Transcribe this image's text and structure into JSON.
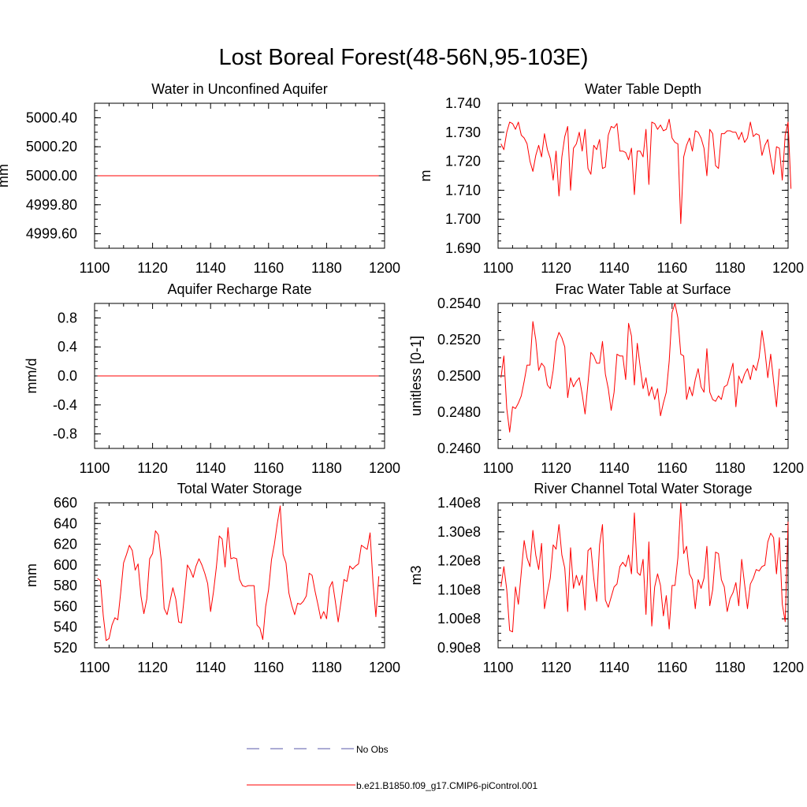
{
  "figure": {
    "title": "Lost Boreal Forest(48-56N,95-103E)"
  },
  "legend": {
    "items": [
      {
        "label": "No Obs",
        "color": "#5a5aa8",
        "style": "dashed"
      },
      {
        "label": "b.e21.B1850.f09_g17.CMIP6-piControl.001",
        "color": "#ff0000",
        "style": "solid"
      }
    ]
  },
  "chart_data": [
    {
      "type": "line",
      "title": "Water in Unconfined Aquifer",
      "xlabel": "",
      "ylabel": "mm",
      "xlim": [
        1100,
        1200
      ],
      "ylim": [
        4999.5,
        5000.5
      ],
      "xticks": [
        1100,
        1120,
        1140,
        1160,
        1180,
        1200
      ],
      "yticks": [
        4999.6,
        4999.8,
        5000.0,
        5000.2,
        5000.4
      ],
      "ytick_labels": [
        "4999.60",
        "4999.80",
        "5000.00",
        "5000.20",
        "5000.40"
      ],
      "x_start": 1101,
      "x_step": 1,
      "series": [
        {
          "name": "b.e21.B1850.f09_g17.CMIP6-piControl.001",
          "color": "#ff0000",
          "values": [
            5000,
            5000,
            5000,
            5000,
            5000,
            5000,
            5000,
            5000,
            5000,
            5000,
            5000,
            5000,
            5000,
            5000,
            5000,
            5000,
            5000,
            5000,
            5000,
            5000,
            5000,
            5000,
            5000,
            5000,
            5000,
            5000,
            5000,
            5000,
            5000,
            5000,
            5000,
            5000,
            5000,
            5000,
            5000,
            5000,
            5000,
            5000,
            5000,
            5000,
            5000,
            5000,
            5000,
            5000,
            5000,
            5000,
            5000,
            5000,
            5000,
            5000,
            5000,
            5000,
            5000,
            5000,
            5000,
            5000,
            5000,
            5000,
            5000,
            5000,
            5000,
            5000,
            5000,
            5000,
            5000,
            5000,
            5000,
            5000,
            5000,
            5000,
            5000,
            5000,
            5000,
            5000,
            5000,
            5000,
            5000,
            5000,
            5000,
            5000,
            5000,
            5000,
            5000,
            5000,
            5000,
            5000,
            5000,
            5000,
            5000,
            5000,
            5000,
            5000,
            5000,
            5000,
            5000,
            5000,
            5000,
            5000
          ]
        }
      ]
    },
    {
      "type": "line",
      "title": "Water Table Depth",
      "xlabel": "",
      "ylabel": "m",
      "xlim": [
        1100,
        1200
      ],
      "ylim": [
        1.69,
        1.74
      ],
      "xticks": [
        1100,
        1120,
        1140,
        1160,
        1180,
        1200
      ],
      "yticks": [
        1.69,
        1.7,
        1.71,
        1.72,
        1.73,
        1.74
      ],
      "ytick_labels": [
        "1.690",
        "1.700",
        "1.710",
        "1.720",
        "1.730",
        "1.740"
      ],
      "x_start": 1101,
      "x_step": 1,
      "series": [
        {
          "name": "b.e21.B1850.f09_g17.CMIP6-piControl.001",
          "color": "#ff0000",
          "values": [
            1.726,
            1.724,
            1.73,
            1.7335,
            1.733,
            1.731,
            1.7335,
            1.729,
            1.728,
            1.726,
            1.72,
            1.7165,
            1.722,
            1.7255,
            1.7215,
            1.7295,
            1.724,
            1.721,
            1.7135,
            1.7235,
            1.708,
            1.7215,
            1.7285,
            1.732,
            1.71,
            1.7245,
            1.726,
            1.73,
            1.7235,
            1.731,
            1.7175,
            1.7155,
            1.7255,
            1.724,
            1.7275,
            1.7175,
            1.718,
            1.729,
            1.732,
            1.7315,
            1.733,
            1.7235,
            1.7235,
            1.723,
            1.7205,
            1.7245,
            1.7085,
            1.7235,
            1.7235,
            1.7215,
            1.731,
            1.712,
            1.7335,
            1.733,
            1.731,
            1.7325,
            1.7305,
            1.731,
            1.7345,
            1.728,
            1.7265,
            1.726,
            1.6985,
            1.7215,
            1.7255,
            1.728,
            1.7235,
            1.7305,
            1.73,
            1.728,
            1.7245,
            1.715,
            1.731,
            1.7295,
            1.7185,
            1.7175,
            1.7295,
            1.7295,
            1.7305,
            1.7305,
            1.73,
            1.73,
            1.7275,
            1.73,
            1.7265,
            1.728,
            1.7335,
            1.7285,
            1.7295,
            1.729,
            1.722,
            1.7255,
            1.7275,
            1.721,
            1.7155,
            1.725,
            1.7245,
            1.7135,
            1.729,
            1.7335,
            1.7105
          ]
        }
      ]
    },
    {
      "type": "line",
      "title": "Aquifer Recharge Rate",
      "xlabel": "",
      "ylabel": "mm/d",
      "xlim": [
        1100,
        1200
      ],
      "ylim": [
        -1.0,
        1.0
      ],
      "xticks": [
        1100,
        1120,
        1140,
        1160,
        1180,
        1200
      ],
      "yticks": [
        -0.8,
        -0.4,
        0.0,
        0.4,
        0.8
      ],
      "ytick_labels": [
        "-0.8",
        "-0.4",
        "0.0",
        "0.4",
        "0.8"
      ],
      "x_start": 1101,
      "x_step": 1,
      "series": [
        {
          "name": "b.e21.B1850.f09_g17.CMIP6-piControl.001",
          "color": "#ff0000",
          "values": [
            0,
            0,
            0,
            0,
            0,
            0,
            0,
            0,
            0,
            0,
            0,
            0,
            0,
            0,
            0,
            0,
            0,
            0,
            0,
            0,
            0,
            0,
            0,
            0,
            0,
            0,
            0,
            0,
            0,
            0,
            0,
            0,
            0,
            0,
            0,
            0,
            0,
            0,
            0,
            0,
            0,
            0,
            0,
            0,
            0,
            0,
            0,
            0,
            0,
            0,
            0,
            0,
            0,
            0,
            0,
            0,
            0,
            0,
            0,
            0,
            0,
            0,
            0,
            0,
            0,
            0,
            0,
            0,
            0,
            0,
            0,
            0,
            0,
            0,
            0,
            0,
            0,
            0,
            0,
            0,
            0,
            0,
            0,
            0,
            0,
            0,
            0,
            0,
            0,
            0,
            0,
            0,
            0,
            0,
            0,
            0,
            0,
            0
          ]
        }
      ]
    },
    {
      "type": "line",
      "title": "Frac Water Table at Surface",
      "xlabel": "",
      "ylabel": "unitless [0-1]",
      "xlim": [
        1100,
        1200
      ],
      "ylim": [
        0.246,
        0.254
      ],
      "xticks": [
        1100,
        1120,
        1140,
        1160,
        1180,
        1200
      ],
      "yticks": [
        0.246,
        0.248,
        0.25,
        0.252,
        0.254
      ],
      "ytick_labels": [
        "0.2460",
        "0.2480",
        "0.2500",
        "0.2520",
        "0.2540"
      ],
      "x_start": 1101,
      "x_step": 1,
      "series": [
        {
          "name": "b.e21.B1850.f09_g17.CMIP6-piControl.001",
          "color": "#ff0000",
          "values": [
            0.2499,
            0.2511,
            0.2482,
            0.2469,
            0.2483,
            0.2482,
            0.2485,
            0.2489,
            0.2497,
            0.2506,
            0.2506,
            0.253,
            0.252,
            0.2503,
            0.2507,
            0.2505,
            0.2495,
            0.2493,
            0.2503,
            0.2519,
            0.2524,
            0.2521,
            0.2516,
            0.2488,
            0.2499,
            0.2494,
            0.2497,
            0.2499,
            0.249,
            0.2479,
            0.2496,
            0.2513,
            0.2511,
            0.2507,
            0.2507,
            0.2519,
            0.2501,
            0.2493,
            0.2481,
            0.2491,
            0.2512,
            0.2511,
            0.2511,
            0.2498,
            0.2529,
            0.2522,
            0.2495,
            0.2518,
            0.2505,
            0.2493,
            0.2499,
            0.2489,
            0.2494,
            0.2487,
            0.2493,
            0.2478,
            0.2485,
            0.2491,
            0.2508,
            0.2535,
            0.254,
            0.2532,
            0.2512,
            0.2511,
            0.2487,
            0.2494,
            0.2489,
            0.2498,
            0.2504,
            0.2494,
            0.2491,
            0.2515,
            0.2491,
            0.2487,
            0.2486,
            0.2489,
            0.2487,
            0.2494,
            0.2495,
            0.2501,
            0.2507,
            0.2483,
            0.25,
            0.2496,
            0.2501,
            0.2504,
            0.2498,
            0.2506,
            0.2503,
            0.251,
            0.2525,
            0.2514,
            0.2499,
            0.2512,
            0.2497,
            0.2483,
            0.2504
          ]
        }
      ]
    },
    {
      "type": "line",
      "title": "Total Water Storage",
      "xlabel": "",
      "ylabel": "mm",
      "xlim": [
        1100,
        1200
      ],
      "ylim": [
        520,
        660
      ],
      "xticks": [
        1100,
        1120,
        1140,
        1160,
        1180,
        1200
      ],
      "yticks": [
        520,
        540,
        560,
        580,
        600,
        620,
        640,
        660
      ],
      "ytick_labels": [
        "520",
        "540",
        "560",
        "580",
        "600",
        "620",
        "640",
        "660"
      ],
      "x_start": 1101,
      "x_step": 1,
      "series": [
        {
          "name": "b.e21.B1850.f09_g17.CMIP6-piControl.001",
          "color": "#ff0000",
          "values": [
            587,
            585,
            551,
            527,
            529,
            542,
            549,
            547,
            573,
            602,
            610,
            619,
            614,
            595,
            601,
            570,
            553,
            567,
            606,
            611,
            633,
            629,
            604,
            558,
            552,
            565,
            578,
            567,
            545,
            544,
            571,
            600,
            595,
            588,
            599,
            606,
            600,
            592,
            582,
            555,
            574,
            598,
            628,
            625,
            598,
            636,
            606,
            607,
            606,
            586,
            580,
            579,
            580,
            580,
            580,
            542,
            539,
            528,
            560,
            576,
            605,
            620,
            640,
            657,
            610,
            602,
            573,
            561,
            552,
            563,
            562,
            565,
            570,
            592,
            590,
            575,
            562,
            548,
            555,
            548,
            578,
            584,
            565,
            545,
            565,
            586,
            584,
            599,
            596,
            599,
            601,
            619,
            617,
            615,
            631,
            583,
            550,
            589
          ]
        }
      ]
    },
    {
      "type": "line",
      "title": "River Channel Total Water Storage",
      "xlabel": "",
      "ylabel": "m3",
      "xlim": [
        1100,
        1200
      ],
      "ylim": [
        90000000,
        140000000
      ],
      "xticks": [
        1100,
        1120,
        1140,
        1160,
        1180,
        1200
      ],
      "yticks": [
        90000000,
        100000000,
        110000000,
        120000000,
        130000000,
        140000000
      ],
      "ytick_labels": [
        "0.90e8",
        "1.00e8",
        "1.10e8",
        "1.20e8",
        "1.30e8",
        "1.40e8"
      ],
      "x_start": 1101,
      "x_step": 1,
      "series": [
        {
          "name": "b.e21.B1850.f09_g17.CMIP6-piControl.001",
          "color": "#ff0000",
          "values": [
            111000000,
            118000000,
            110000000,
            96000000,
            95500000,
            111000000,
            105000000,
            116000000,
            127000000,
            121000000,
            118000000,
            130500000,
            122000000,
            117000000,
            126000000,
            103500000,
            109000000,
            114000000,
            125500000,
            124000000,
            132500000,
            122000000,
            117500000,
            102500000,
            124500000,
            110500000,
            115000000,
            111500000,
            115000000,
            103000000,
            123500000,
            124500000,
            114000000,
            106000000,
            125500000,
            132500000,
            106500000,
            104000000,
            107500000,
            111000000,
            112000000,
            118000000,
            119500000,
            118000000,
            122000000,
            115500000,
            136500000,
            116000000,
            115000000,
            120500000,
            101500000,
            126500000,
            97500000,
            111000000,
            115500000,
            111500000,
            101000000,
            108000000,
            96500000,
            111500000,
            111500000,
            121000000,
            140000000,
            122500000,
            125000000,
            115500000,
            113500000,
            103500000,
            113500000,
            110500000,
            114000000,
            125000000,
            104500000,
            110000000,
            123000000,
            122500000,
            113500000,
            111000000,
            102500000,
            107000000,
            109000000,
            112500000,
            104500000,
            120500000,
            112000000,
            103500000,
            112000000,
            114000000,
            117000000,
            116500000,
            118000000,
            118500000,
            126500000,
            129500000,
            128000000,
            115500000,
            128000000,
            105000000,
            99000000,
            133500000
          ]
        }
      ]
    }
  ]
}
